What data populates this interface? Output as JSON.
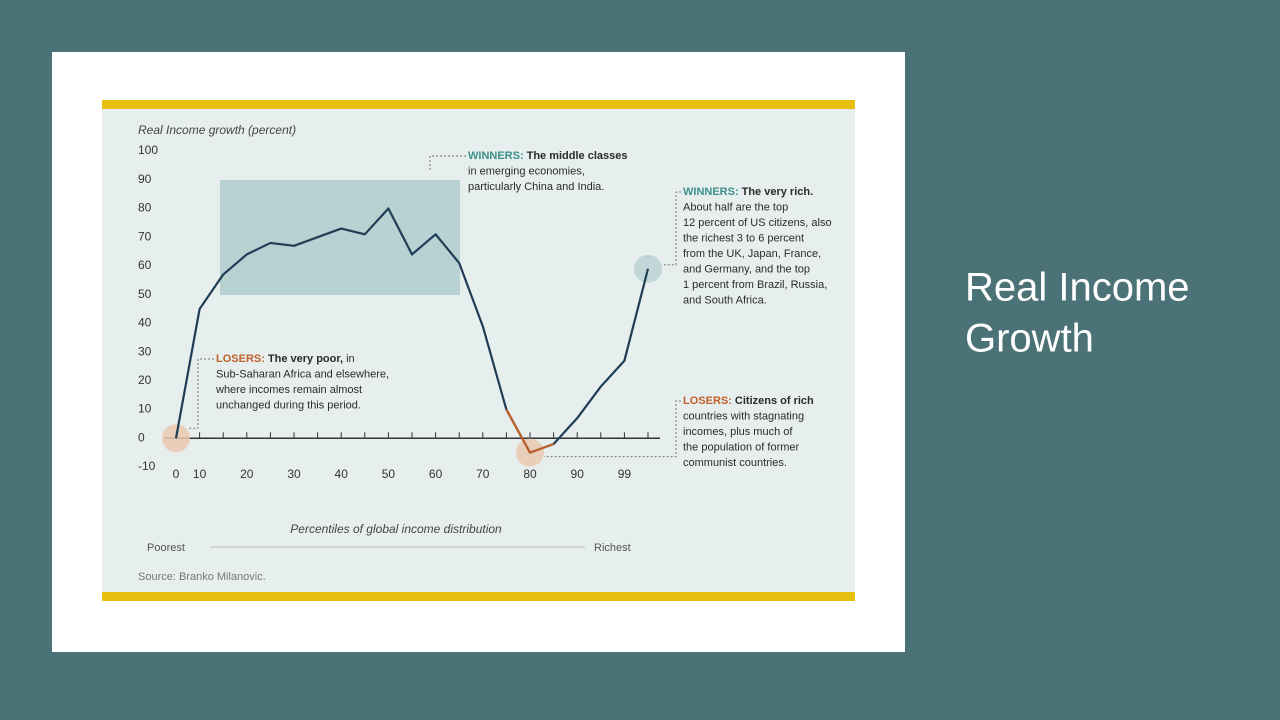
{
  "slide_title_lines": [
    "Real Income",
    "Growth"
  ],
  "chart_data": {
    "type": "line",
    "y_axis_label": "Real Income growth (percent)",
    "x_axis_label": "Percentiles of global income distribution",
    "x_left_label": "Poorest",
    "x_right_label": "Richest",
    "source": "Source: Branko Milanovic.",
    "categories": [
      "0",
      "10",
      null,
      "20",
      null,
      "30",
      null,
      "40",
      null,
      "50",
      null,
      "60",
      null,
      "70",
      null,
      "80",
      null,
      "90",
      null,
      "99",
      null
    ],
    "values": [
      0,
      45,
      57,
      64,
      68,
      67,
      70,
      73,
      71,
      80,
      64,
      71,
      61,
      39,
      10,
      -5,
      -2,
      7,
      18,
      27,
      59
    ],
    "color": "#1f3d55",
    "ylim": [
      -10,
      100
    ],
    "yticks": [
      -10,
      0,
      10,
      20,
      30,
      40,
      50,
      60,
      70,
      80,
      90,
      100
    ],
    "annotations": [
      {
        "tag": "WINNERS:",
        "headline": "The middle classes",
        "lines": [
          "in emerging economies,",
          "particularly China and India."
        ]
      },
      {
        "tag": "WINNERS:",
        "headline": "The very rich.",
        "lines": [
          "About half are the top",
          "12 percent of US citizens, also",
          "the richest 3 to 6 percent",
          "from the UK, Japan, France,",
          "and Germany, and the top",
          "1 percent from Brazil, Russia,",
          "and South Africa."
        ]
      },
      {
        "tag": "LOSERS:",
        "headline": "The very poor,",
        "tail": "in",
        "lines": [
          "Sub-Saharan Africa and elsewhere,",
          "where incomes remain almost",
          "unchanged during this period."
        ]
      },
      {
        "tag": "LOSERS:",
        "headline": "Citizens of rich",
        "lines": [
          "countries with stagnating",
          "incomes, plus much of",
          "the population of former",
          "communist countries."
        ]
      }
    ]
  }
}
